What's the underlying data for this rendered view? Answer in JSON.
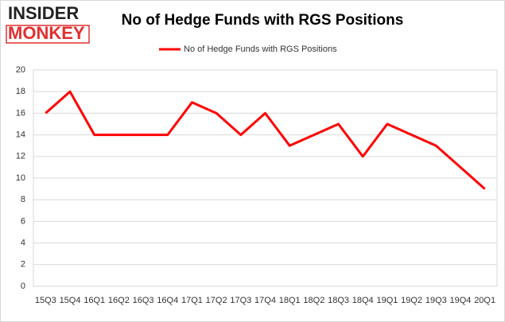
{
  "logo": {
    "line1": "INSIDER",
    "line2": "MONKEY"
  },
  "chart_data": {
    "type": "line",
    "title": "No of Hedge Funds with RGS Positions",
    "categories": [
      "15Q3",
      "15Q4",
      "16Q1",
      "16Q2",
      "16Q3",
      "16Q4",
      "17Q1",
      "17Q2",
      "17Q3",
      "17Q4",
      "18Q1",
      "18Q2",
      "18Q3",
      "18Q4",
      "19Q1",
      "19Q2",
      "19Q3",
      "19Q4",
      "20Q1"
    ],
    "series": [
      {
        "name": "No of Hedge Funds with RGS Positions",
        "color": "#ff0000",
        "values": [
          16,
          18,
          14,
          14,
          14,
          14,
          17,
          16,
          14,
          16,
          13,
          14,
          15,
          12,
          15,
          14,
          13,
          11,
          9
        ]
      }
    ],
    "ylim": [
      0,
      20
    ],
    "yticks": [
      0,
      2,
      4,
      6,
      8,
      10,
      12,
      14,
      16,
      18,
      20
    ],
    "grid": true,
    "legend": "top"
  }
}
